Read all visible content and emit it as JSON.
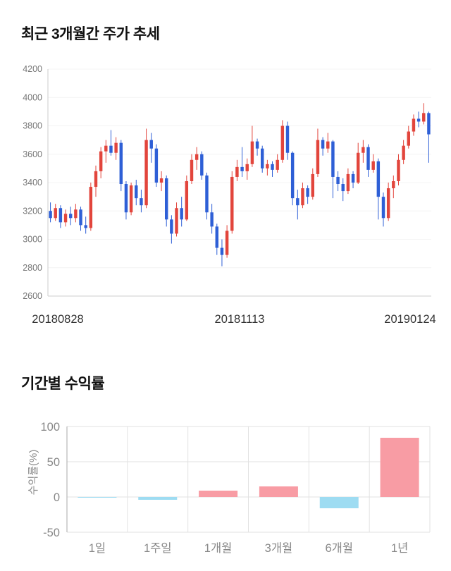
{
  "chart_data": [
    {
      "type": "candlestick",
      "title": "최근 3개월간 주가 추세",
      "ylim": [
        2600,
        4200
      ],
      "yticks": [
        2600,
        2800,
        3000,
        3200,
        3400,
        3600,
        3800,
        4000,
        4200
      ],
      "xtick_labels": [
        "20180828",
        "20181113",
        "20190124"
      ],
      "up_color": "#e2453c",
      "down_color": "#2e5fd6",
      "grid_color": "#f4f4f4",
      "axis_color": "#cccccc",
      "tick_text_color": "#777777",
      "xlabel_text_color": "#333333",
      "candles": [
        [
          3200,
          3260,
          3120,
          3150
        ],
        [
          3150,
          3250,
          3130,
          3220
        ],
        [
          3220,
          3240,
          3080,
          3120
        ],
        [
          3120,
          3210,
          3090,
          3180
        ],
        [
          3180,
          3230,
          3100,
          3150
        ],
        [
          3150,
          3250,
          3120,
          3210
        ],
        [
          3210,
          3230,
          3060,
          3100
        ],
        [
          3100,
          3160,
          3040,
          3080
        ],
        [
          3080,
          3400,
          3060,
          3370
        ],
        [
          3370,
          3520,
          3300,
          3480
        ],
        [
          3480,
          3650,
          3430,
          3620
        ],
        [
          3620,
          3700,
          3540,
          3660
        ],
        [
          3660,
          3770,
          3590,
          3610
        ],
        [
          3610,
          3720,
          3560,
          3680
        ],
        [
          3680,
          3700,
          3340,
          3390
        ],
        [
          3390,
          3410,
          3140,
          3190
        ],
        [
          3190,
          3400,
          3170,
          3380
        ],
        [
          3380,
          3420,
          3240,
          3290
        ],
        [
          3290,
          3350,
          3190,
          3240
        ],
        [
          3240,
          3780,
          3220,
          3700
        ],
        [
          3700,
          3750,
          3540,
          3640
        ],
        [
          3640,
          3670,
          3370,
          3400
        ],
        [
          3400,
          3480,
          3340,
          3430
        ],
        [
          3430,
          3450,
          3090,
          3140
        ],
        [
          3140,
          3170,
          2970,
          3040
        ],
        [
          3040,
          3260,
          3020,
          3220
        ],
        [
          3220,
          3300,
          3090,
          3140
        ],
        [
          3140,
          3450,
          3130,
          3410
        ],
        [
          3410,
          3600,
          3390,
          3560
        ],
        [
          3560,
          3650,
          3490,
          3600
        ],
        [
          3600,
          3620,
          3420,
          3450
        ],
        [
          3450,
          3470,
          3140,
          3190
        ],
        [
          3190,
          3250,
          3040,
          3090
        ],
        [
          3090,
          3110,
          2890,
          2940
        ],
        [
          2940,
          3000,
          2810,
          2890
        ],
        [
          2890,
          3100,
          2870,
          3060
        ],
        [
          3060,
          3480,
          3040,
          3440
        ],
        [
          3440,
          3560,
          3410,
          3510
        ],
        [
          3510,
          3650,
          3440,
          3480
        ],
        [
          3480,
          3570,
          3420,
          3530
        ],
        [
          3530,
          3800,
          3510,
          3690
        ],
        [
          3690,
          3710,
          3590,
          3640
        ],
        [
          3640,
          3660,
          3470,
          3500
        ],
        [
          3500,
          3560,
          3450,
          3530
        ],
        [
          3530,
          3550,
          3440,
          3490
        ],
        [
          3490,
          3600,
          3470,
          3560
        ],
        [
          3560,
          3840,
          3540,
          3800
        ],
        [
          3800,
          3830,
          3560,
          3610
        ],
        [
          3610,
          3620,
          3240,
          3290
        ],
        [
          3290,
          3350,
          3140,
          3240
        ],
        [
          3240,
          3400,
          3220,
          3360
        ],
        [
          3360,
          3380,
          3250,
          3300
        ],
        [
          3300,
          3500,
          3280,
          3460
        ],
        [
          3460,
          3780,
          3440,
          3700
        ],
        [
          3700,
          3720,
          3590,
          3640
        ],
        [
          3640,
          3750,
          3610,
          3690
        ],
        [
          3690,
          3700,
          3290,
          3440
        ],
        [
          3440,
          3480,
          3340,
          3390
        ],
        [
          3390,
          3430,
          3270,
          3340
        ],
        [
          3340,
          3500,
          3320,
          3460
        ],
        [
          3460,
          3480,
          3360,
          3400
        ],
        [
          3400,
          3680,
          3390,
          3610
        ],
        [
          3610,
          3700,
          3540,
          3650
        ],
        [
          3650,
          3670,
          3440,
          3490
        ],
        [
          3490,
          3600,
          3470,
          3550
        ],
        [
          3550,
          3570,
          3140,
          3300
        ],
        [
          3300,
          3330,
          3090,
          3150
        ],
        [
          3150,
          3400,
          3130,
          3360
        ],
        [
          3360,
          3450,
          3290,
          3410
        ],
        [
          3410,
          3600,
          3380,
          3560
        ],
        [
          3560,
          3700,
          3530,
          3660
        ],
        [
          3660,
          3800,
          3640,
          3760
        ],
        [
          3760,
          3880,
          3730,
          3850
        ],
        [
          3850,
          3900,
          3790,
          3830
        ],
        [
          3830,
          3960,
          3810,
          3890
        ],
        [
          3890,
          3900,
          3540,
          3740
        ]
      ]
    },
    {
      "type": "bar",
      "title": "기간별 수익률",
      "ylabel": "수익률(%)",
      "categories": [
        "1일",
        "1주일",
        "1개월",
        "3개월",
        "6개월",
        "1년"
      ],
      "values": [
        -1,
        -4,
        9,
        15,
        -16,
        84
      ],
      "ylim": [
        -50,
        100
      ],
      "yticks": [
        -50,
        0,
        50,
        100
      ],
      "positive_color": "#f89ca4",
      "negative_color": "#9edcf2",
      "grid_color": "#e2e2e2",
      "axis_color": "#aaaaaa",
      "tick_text_color": "#888888",
      "category_text_color": "#888888"
    }
  ]
}
